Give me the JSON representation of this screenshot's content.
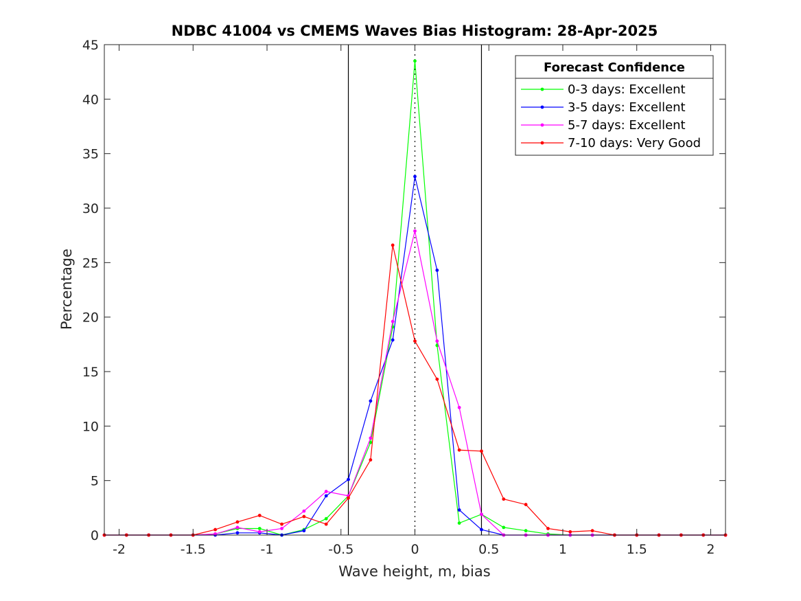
{
  "chart_data": {
    "type": "line",
    "title": "NDBC 41004 vs CMEMS Waves Bias Histogram: 28-Apr-2025",
    "xlabel": "Wave height, m, bias",
    "ylabel": "Percentage",
    "xlim": [
      -2.1,
      2.1
    ],
    "ylim": [
      0,
      45
    ],
    "xticks": [
      -2,
      -1.5,
      -1,
      -0.5,
      0,
      0.5,
      1,
      1.5,
      2
    ],
    "xtick_labels": [
      "-2",
      "-1.5",
      "-1",
      "-0.5",
      "0",
      "0.5",
      "1",
      "1.5",
      "2"
    ],
    "yticks": [
      0,
      5,
      10,
      15,
      20,
      25,
      30,
      35,
      40,
      45
    ],
    "ytick_labels": [
      "0",
      "5",
      "10",
      "15",
      "20",
      "25",
      "30",
      "35",
      "40",
      "45"
    ],
    "grid": false,
    "reference_lines": {
      "solid_x": [
        -0.45,
        0.45
      ],
      "dotted_x": [
        0
      ]
    },
    "legend": {
      "title": "Forecast Confidence",
      "location": "top-right"
    },
    "x": [
      -2.1,
      -1.95,
      -1.8,
      -1.65,
      -1.5,
      -1.35,
      -1.2,
      -1.05,
      -0.9,
      -0.75,
      -0.6,
      -0.45,
      -0.3,
      -0.15,
      0,
      0.15,
      0.3,
      0.45,
      0.6,
      0.75,
      0.9,
      1.05,
      1.2,
      1.35,
      1.5,
      1.65,
      1.8,
      1.95,
      2.1
    ],
    "series": [
      {
        "name": "0-3 days: Excellent",
        "color": "#00ff00",
        "values": [
          0,
          0,
          0,
          0,
          0,
          0.1,
          0.6,
          0.6,
          0,
          0.5,
          1.5,
          3.6,
          8.5,
          19.1,
          43.5,
          17.4,
          1.1,
          1.9,
          0.7,
          0.4,
          0.1,
          0,
          0,
          0,
          0,
          0,
          0,
          0,
          0
        ]
      },
      {
        "name": "3-5 days: Excellent",
        "color": "#0000ff",
        "values": [
          0,
          0,
          0,
          0,
          0,
          0,
          0.2,
          0.2,
          0,
          0.4,
          3.6,
          5.1,
          12.3,
          17.9,
          32.9,
          24.3,
          2.3,
          0.5,
          0,
          0,
          0,
          0,
          0,
          0,
          0,
          0,
          0,
          0,
          0
        ]
      },
      {
        "name": "5-7 days: Excellent",
        "color": "#ff00ff",
        "values": [
          0,
          0,
          0,
          0,
          0,
          0.1,
          0.7,
          0.3,
          0.6,
          2.2,
          4.0,
          3.6,
          8.9,
          19.6,
          27.9,
          17.8,
          11.7,
          1.9,
          0,
          0,
          0,
          0,
          0,
          0,
          0,
          0,
          0,
          0,
          0
        ]
      },
      {
        "name": "7-10 days: Very Good",
        "color": "#ff0000",
        "values": [
          0,
          0,
          0,
          0,
          0,
          0.5,
          1.2,
          1.8,
          1.0,
          1.7,
          1.0,
          3.4,
          6.9,
          26.6,
          17.8,
          14.3,
          7.8,
          7.7,
          3.3,
          2.8,
          0.6,
          0.3,
          0.4,
          0,
          0,
          0,
          0,
          0,
          0
        ]
      }
    ]
  }
}
